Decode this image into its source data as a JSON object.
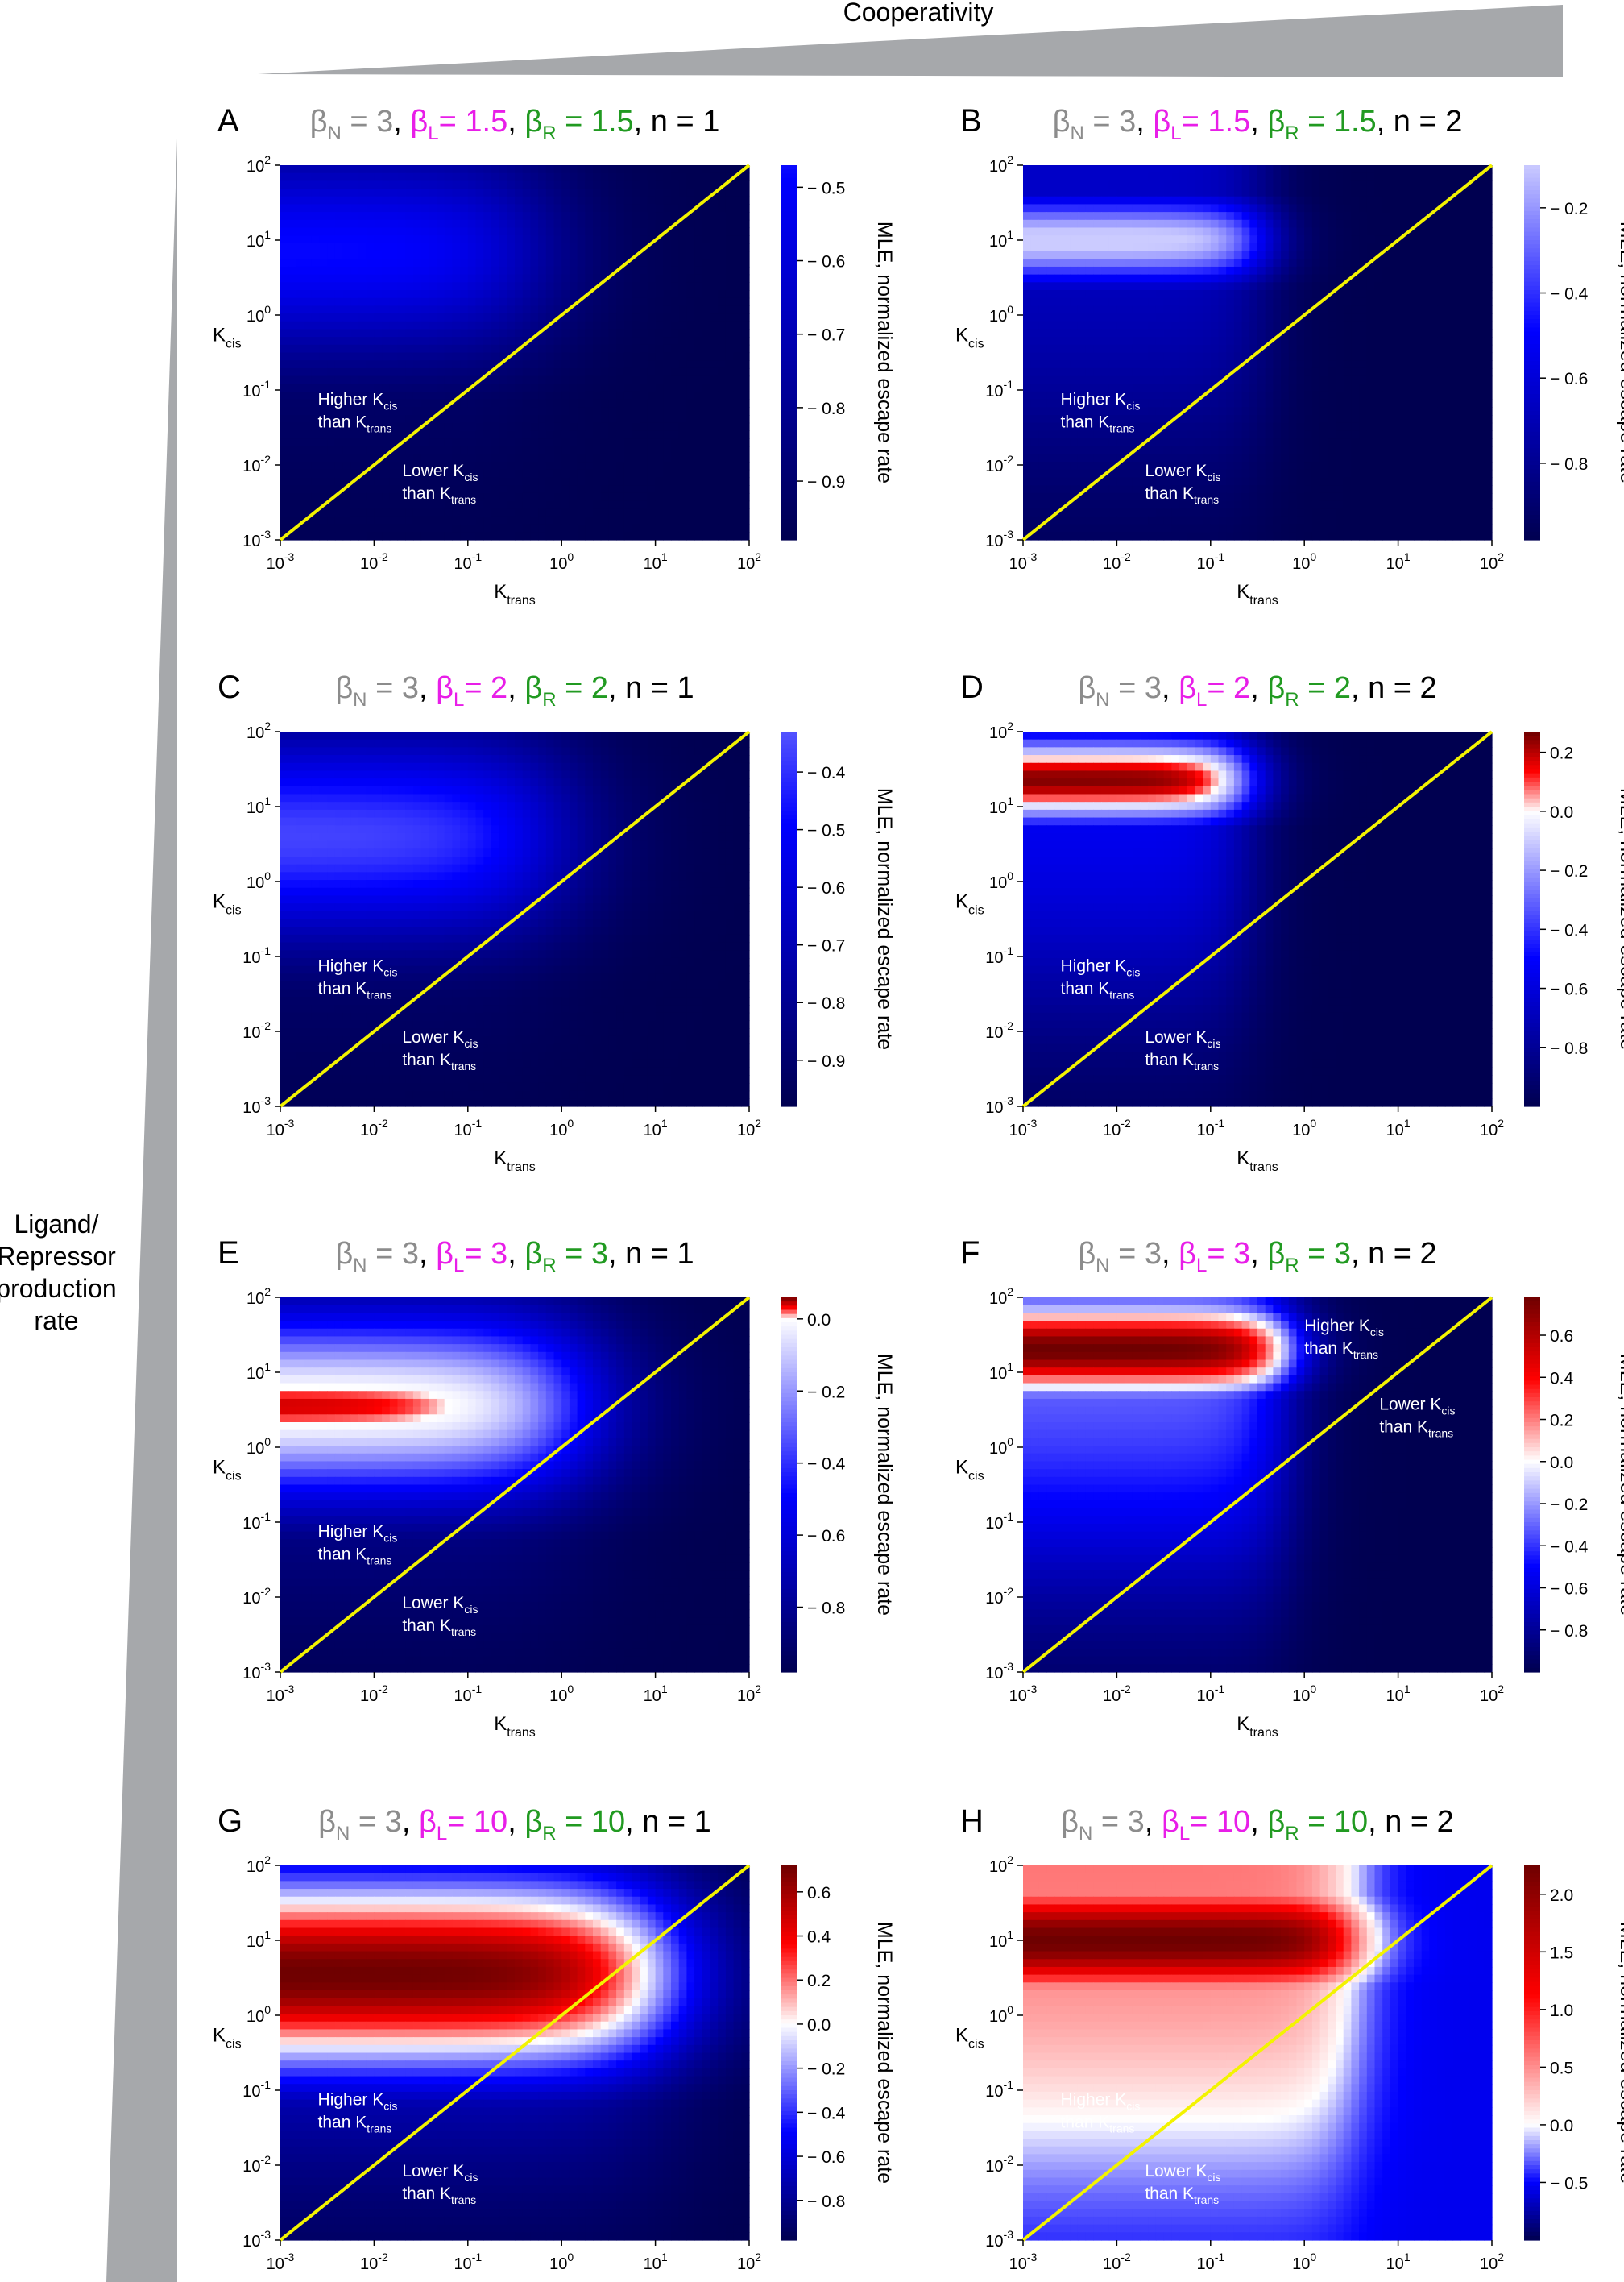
{
  "header": {
    "cooperativity_label": "Cooperativity",
    "side_label_lines": [
      "Ligand/",
      "Repressor",
      "production",
      "rate"
    ]
  },
  "colors": {
    "beta_n": "#8c8c8c",
    "beta_l": "#e81ee8",
    "beta_r": "#219a21",
    "n_text": "#000000",
    "diagonal": "#f3f300",
    "wedge": "#a6a8ab"
  },
  "chart_data": [
    {
      "panel": "A",
      "type": "heatmap",
      "title_parts": {
        "bn": "3",
        "bl": "1.5",
        "br": "1.5",
        "n": "1"
      },
      "xlabel": "K",
      "xlabel_sub": "trans",
      "ylabel": "K",
      "ylabel_sub": "cis",
      "x_ticks": [
        "-3",
        "-2",
        "-1",
        "0",
        "1",
        "2"
      ],
      "y_ticks": [
        "-3",
        "-2",
        "-1",
        "0",
        "1",
        "2"
      ],
      "x_range_log10": [
        -3,
        2
      ],
      "y_range_log10": [
        -3,
        2
      ],
      "colorbar": {
        "label": "MLE, normalized escape rate",
        "min": -0.98,
        "max": -0.47,
        "ticks": [
          "-0.5",
          "-0.6",
          "-0.7",
          "-0.8",
          "-0.9"
        ],
        "tick_values": [
          -0.5,
          -0.6,
          -0.7,
          -0.8,
          -0.9
        ]
      },
      "annotations": [
        {
          "line1": "Higher K",
          "sub1": "cis",
          "line2": "than K",
          "sub2": "trans",
          "x": -2.6,
          "y": -1.2
        },
        {
          "line1": "Lower K",
          "sub1": "cis",
          "line2": "than K",
          "sub2": "trans",
          "x": -1.7,
          "y": -2.15
        }
      ],
      "field": {
        "base": -0.98,
        "amp": 0.5,
        "n": 1,
        "k0": 0.5,
        "w": 6,
        "region": 0.6,
        "mid": 0.85,
        "width": 1.0
      }
    },
    {
      "panel": "B",
      "type": "heatmap",
      "title_parts": {
        "bn": "3",
        "bl": "1.5",
        "br": "1.5",
        "n": "2"
      },
      "xlabel": "K",
      "xlabel_sub": "trans",
      "ylabel": "K",
      "ylabel_sub": "cis",
      "x_ticks": [
        "-3",
        "-2",
        "-1",
        "0",
        "1",
        "2"
      ],
      "y_ticks": [
        "-3",
        "-2",
        "-1",
        "0",
        "1",
        "2"
      ],
      "x_range_log10": [
        -3,
        2
      ],
      "y_range_log10": [
        -3,
        2
      ],
      "colorbar": {
        "label": "MLE, normalized escape rate",
        "min": -0.98,
        "max": -0.1,
        "ticks": [
          "-0.2",
          "-0.4",
          "-0.6",
          "-0.8"
        ],
        "tick_values": [
          -0.2,
          -0.4,
          -0.6,
          -0.8
        ]
      },
      "annotations": [
        {
          "line1": "Higher K",
          "sub1": "cis",
          "line2": "than K",
          "sub2": "trans",
          "x": -2.6,
          "y": -1.2
        },
        {
          "line1": "Lower K",
          "sub1": "cis",
          "line2": "than K",
          "sub2": "trans",
          "x": -1.7,
          "y": -2.15
        }
      ],
      "field": {
        "base": -0.98,
        "amp": 0.9,
        "n": 2,
        "k0": 0.35,
        "w": 2.5,
        "region": 0.38,
        "mid": 1.0,
        "width": 0.45
      }
    },
    {
      "panel": "C",
      "type": "heatmap",
      "title_parts": {
        "bn": "3",
        "bl": "2",
        "br": "2",
        "n": "1"
      },
      "xlabel": "K",
      "xlabel_sub": "trans",
      "ylabel": "K",
      "ylabel_sub": "cis",
      "x_ticks": [
        "-3",
        "-2",
        "-1",
        "0",
        "1",
        "2"
      ],
      "y_ticks": [
        "-3",
        "-2",
        "-1",
        "0",
        "1",
        "2"
      ],
      "x_range_log10": [
        -3,
        2
      ],
      "y_range_log10": [
        -3,
        2
      ],
      "colorbar": {
        "label": "MLE, normalized escape rate",
        "min": -0.98,
        "max": -0.33,
        "ticks": [
          "-0.4",
          "-0.5",
          "-0.6",
          "-0.7",
          "-0.8",
          "-0.9"
        ],
        "tick_values": [
          -0.4,
          -0.5,
          -0.6,
          -0.7,
          -0.8,
          -0.9
        ]
      },
      "annotations": [
        {
          "line1": "Higher K",
          "sub1": "cis",
          "line2": "than K",
          "sub2": "trans",
          "x": -2.6,
          "y": -1.2
        },
        {
          "line1": "Lower K",
          "sub1": "cis",
          "line2": "than K",
          "sub2": "trans",
          "x": -1.7,
          "y": -2.15
        }
      ],
      "field": {
        "base": -0.98,
        "amp": 0.62,
        "n": 1,
        "k0": 0.8,
        "w": 6,
        "region": 0.6,
        "mid": 0.6,
        "width": 1.0
      }
    },
    {
      "panel": "D",
      "type": "heatmap",
      "title_parts": {
        "bn": "3",
        "bl": "2",
        "br": "2",
        "n": "2"
      },
      "xlabel": "K",
      "xlabel_sub": "trans",
      "ylabel": "K",
      "ylabel_sub": "cis",
      "x_ticks": [
        "-3",
        "-2",
        "-1",
        "0",
        "1",
        "2"
      ],
      "y_ticks": [
        "-3",
        "-2",
        "-1",
        "0",
        "1",
        "2"
      ],
      "x_range_log10": [
        -3,
        2
      ],
      "y_range_log10": [
        -3,
        2
      ],
      "colorbar": {
        "label": "MLE, normalized escape rate",
        "min": -1.0,
        "max": 0.27,
        "ticks": [
          "0.2",
          "0.0",
          "-0.2",
          "-0.4",
          "-0.6",
          "-0.8"
        ],
        "tick_values": [
          0.2,
          0.0,
          -0.2,
          -0.4,
          -0.6,
          -0.8
        ]
      },
      "annotations": [
        {
          "line1": "Higher K",
          "sub1": "cis",
          "line2": "than K",
          "sub2": "trans",
          "x": -2.6,
          "y": -1.2
        },
        {
          "line1": "Lower K",
          "sub1": "cis",
          "line2": "than K",
          "sub2": "trans",
          "x": -1.7,
          "y": -2.15
        }
      ],
      "field": {
        "base": -1.0,
        "amp": 1.25,
        "n": 2,
        "k0": 0.25,
        "w": 2.5,
        "region": 0.4,
        "mid": 1.35,
        "width": 0.45
      }
    },
    {
      "panel": "E",
      "type": "heatmap",
      "title_parts": {
        "bn": "3",
        "bl": "3",
        "br": "3",
        "n": "1"
      },
      "xlabel": "K",
      "xlabel_sub": "trans",
      "ylabel": "K",
      "ylabel_sub": "cis",
      "x_ticks": [
        "-3",
        "-2",
        "-1",
        "0",
        "1",
        "2"
      ],
      "y_ticks": [
        "-3",
        "-2",
        "-1",
        "0",
        "1",
        "2"
      ],
      "x_range_log10": [
        -3,
        2
      ],
      "y_range_log10": [
        -3,
        2
      ],
      "colorbar": {
        "label": "MLE, normalized escape rate",
        "min": -0.98,
        "max": 0.06,
        "ticks": [
          "0.0",
          "-0.2",
          "-0.4",
          "-0.6",
          "-0.8"
        ],
        "tick_values": [
          0.0,
          -0.2,
          -0.4,
          -0.6,
          -0.8
        ]
      },
      "annotations": [
        {
          "line1": "Higher K",
          "sub1": "cis",
          "line2": "than K",
          "sub2": "trans",
          "x": -2.6,
          "y": -1.2
        },
        {
          "line1": "Lower K",
          "sub1": "cis",
          "line2": "than K",
          "sub2": "trans",
          "x": -1.7,
          "y": -2.15
        }
      ],
      "field": {
        "base": -0.98,
        "amp": 1.02,
        "n": 1,
        "k0": 1.5,
        "w": 6,
        "region": 0.65,
        "mid": 0.55,
        "width": 0.9
      }
    },
    {
      "panel": "F",
      "type": "heatmap",
      "title_parts": {
        "bn": "3",
        "bl": "3",
        "br": "3",
        "n": "2"
      },
      "xlabel": "K",
      "xlabel_sub": "trans",
      "ylabel": "K",
      "ylabel_sub": "cis",
      "x_ticks": [
        "-3",
        "-2",
        "-1",
        "0",
        "1",
        "2"
      ],
      "y_ticks": [
        "-3",
        "-2",
        "-1",
        "0",
        "1",
        "2"
      ],
      "x_range_log10": [
        -3,
        2
      ],
      "y_range_log10": [
        -3,
        2
      ],
      "colorbar": {
        "label": "MLE, normalized escape rate",
        "min": -1.0,
        "max": 0.78,
        "ticks": [
          "0.6",
          "0.4",
          "0.2",
          "0.0",
          "-0.2",
          "-0.4",
          "-0.6",
          "-0.8"
        ],
        "tick_values": [
          0.6,
          0.4,
          0.2,
          0.0,
          -0.2,
          -0.4,
          -0.6,
          -0.8
        ]
      },
      "annotations": [
        {
          "line1": "Higher K",
          "sub1": "cis",
          "line2": "than K",
          "sub2": "trans",
          "x": 0.0,
          "y": 1.55
        },
        {
          "line1": "Lower K",
          "sub1": "cis",
          "line2": "than K",
          "sub2": "trans",
          "x": 0.8,
          "y": 0.5
        }
      ],
      "field": {
        "base": -1.0,
        "amp": 1.78,
        "n": 2,
        "k0": 0.6,
        "w": 2.5,
        "region": 0.42,
        "mid": 1.3,
        "width": 0.45
      }
    },
    {
      "panel": "G",
      "type": "heatmap",
      "title_parts": {
        "bn": "3",
        "bl": "10",
        "br": "10",
        "n": "1"
      },
      "xlabel": "K",
      "xlabel_sub": "trans",
      "ylabel": "K",
      "ylabel_sub": "cis",
      "x_ticks": [
        "-3",
        "-2",
        "-1",
        "0",
        "1",
        "2"
      ],
      "y_ticks": [
        "-3",
        "-2",
        "-1",
        "0",
        "1",
        "2"
      ],
      "x_range_log10": [
        -3,
        2
      ],
      "y_range_log10": [
        -3,
        2
      ],
      "colorbar": {
        "label": "MLE, normalized escape rate",
        "min": -0.98,
        "max": 0.72,
        "ticks": [
          "0.6",
          "0.4",
          "0.2",
          "0.0",
          "-0.2",
          "-0.4",
          "-0.6",
          "-0.8"
        ],
        "tick_values": [
          0.6,
          0.4,
          0.2,
          0.0,
          -0.2,
          -0.4,
          -0.6,
          -0.8
        ]
      },
      "annotations": [
        {
          "line1": "Higher K",
          "sub1": "cis",
          "line2": "than K",
          "sub2": "trans",
          "x": -2.6,
          "y": -1.2
        },
        {
          "line1": "Lower K",
          "sub1": "cis",
          "line2": "than K",
          "sub2": "trans",
          "x": -1.7,
          "y": -2.15
        }
      ],
      "field": {
        "base": -0.98,
        "amp": 1.7,
        "n": 1,
        "k0": 10,
        "w": 3,
        "region": 0.7,
        "mid": 0.55,
        "width": 0.9
      }
    },
    {
      "panel": "H",
      "type": "heatmap",
      "title_parts": {
        "bn": "3",
        "bl": "10",
        "br": "10",
        "n": "2"
      },
      "xlabel": "K",
      "xlabel_sub": "trans",
      "ylabel": "K",
      "ylabel_sub": "cis",
      "x_ticks": [
        "-3",
        "-2",
        "-1",
        "0",
        "1",
        "2"
      ],
      "y_ticks": [
        "-3",
        "-2",
        "-1",
        "0",
        "1",
        "2"
      ],
      "x_range_log10": [
        -3,
        2
      ],
      "y_range_log10": [
        -3,
        2
      ],
      "colorbar": {
        "label": "MLE, normalized escape rate",
        "min": -1.0,
        "max": 2.25,
        "ticks": [
          "2.0",
          "1.5",
          "1.0",
          "0.5",
          "0.0",
          "-0.5"
        ],
        "tick_values": [
          2.0,
          1.5,
          1.0,
          0.5,
          0.0,
          -0.5
        ]
      },
      "annotations": [
        {
          "line1": "Higher K",
          "sub1": "cis",
          "line2": "than K",
          "sub2": "trans",
          "x": -2.6,
          "y": -1.2
        },
        {
          "line1": "Lower K",
          "sub1": "cis",
          "line2": "than K",
          "sub2": "trans",
          "x": -1.7,
          "y": -2.15
        }
      ],
      "field": {
        "base": -0.55,
        "amp": 2.8,
        "n": 2,
        "k0": 3,
        "w": 4,
        "region": 0.42,
        "mid": 1.0,
        "width": 0.45
      }
    }
  ]
}
